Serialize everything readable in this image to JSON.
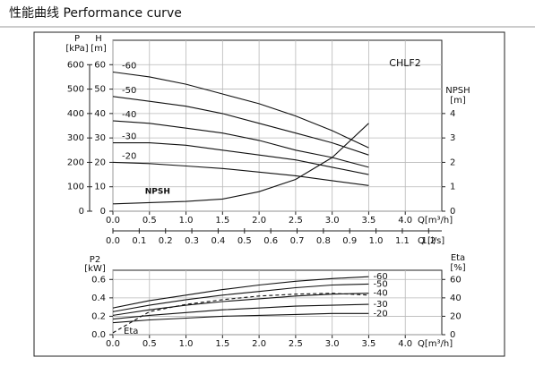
{
  "page_title": "性能曲线  Performance curve",
  "chart_data": [
    {
      "type": "line",
      "annotations": [
        "CHLF2"
      ],
      "x": [
        0,
        0.5,
        1,
        1.5,
        2,
        2.5,
        3,
        3.5
      ],
      "xlim": [
        0,
        4.5
      ],
      "xticks": [
        {
          "value": 0,
          "label": "0.0"
        },
        0.5,
        {
          "value": 1,
          "label": "1.0"
        },
        1.5,
        {
          "value": 2,
          "label": "2.0"
        },
        2.5,
        {
          "value": 3,
          "label": "3.0"
        },
        3.5,
        {
          "value": 4,
          "label": "4.0"
        }
      ],
      "xlabel": "Q[m³/h]",
      "x2lim": [
        0,
        1.25
      ],
      "x2ticks": [
        {
          "value": 0,
          "label": "0.0"
        },
        0.1,
        0.2,
        0.3,
        0.4,
        0.5,
        0.6,
        0.7,
        0.8,
        0.9,
        {
          "value": 1,
          "label": "1.0"
        },
        1.1,
        1.2
      ],
      "x2label": "Q [l/s]",
      "ylim": [
        0,
        70
      ],
      "yticks": [
        0,
        10,
        20,
        30,
        40,
        50,
        60
      ],
      "ylabel": "H",
      "yunit": "[m]",
      "y3lim": [
        0,
        700
      ],
      "y3ticks": [
        0,
        100,
        200,
        300,
        400,
        500,
        600
      ],
      "y3label": "P",
      "y3unit": "[kPa]",
      "y2lim": [
        0,
        7
      ],
      "y2ticks": [
        0,
        1,
        2,
        3,
        4
      ],
      "y2label": "NPSH",
      "y2unit": "[m]",
      "grid": true,
      "series": [
        {
          "name": "-60",
          "color": "#111111",
          "values": [
            57,
            55,
            52,
            48,
            44,
            39,
            33,
            26
          ]
        },
        {
          "name": "-50",
          "color": "#111111",
          "values": [
            47,
            45,
            43,
            40,
            36,
            32,
            28,
            23
          ]
        },
        {
          "name": "-40",
          "color": "#111111",
          "values": [
            37,
            36,
            34,
            32,
            29,
            25,
            22,
            18
          ]
        },
        {
          "name": "-30",
          "color": "#111111",
          "values": [
            28,
            28,
            27,
            25,
            23,
            21,
            18,
            15
          ]
        },
        {
          "name": "-20",
          "color": "#111111",
          "values": [
            20,
            19.5,
            18.5,
            17.5,
            16,
            14.5,
            12.5,
            10.5
          ]
        },
        {
          "name": "NPSH",
          "color": "#111111",
          "axis": "y2",
          "values": [
            0.3,
            0.35,
            0.4,
            0.5,
            0.8,
            1.3,
            2.2,
            3.6
          ]
        }
      ]
    },
    {
      "type": "line",
      "x": [
        0,
        0.5,
        1,
        1.5,
        2,
        2.5,
        3,
        3.5
      ],
      "xlim": [
        0,
        4.5
      ],
      "xticks": [
        {
          "value": 0,
          "label": "0.0"
        },
        0.5,
        {
          "value": 1,
          "label": "1.0"
        },
        1.5,
        {
          "value": 2,
          "label": "2.0"
        },
        2.5,
        {
          "value": 3,
          "label": "3.0"
        },
        3.5,
        {
          "value": 4,
          "label": "4.0"
        }
      ],
      "xlabel": "Q[m³/h]",
      "ylim": [
        0,
        0.7
      ],
      "yticks": [
        {
          "value": 0,
          "label": "0.0"
        },
        0.2,
        0.4,
        0.6
      ],
      "ylabel": "P2",
      "yunit": "[kW]",
      "y2lim": [
        0,
        70
      ],
      "y2ticks": [
        0,
        20,
        40,
        60
      ],
      "y2label": "Eta",
      "y2unit": "[%]",
      "grid": true,
      "series": [
        {
          "name": "-60",
          "color": "#111111",
          "values": [
            0.29,
            0.37,
            0.43,
            0.49,
            0.54,
            0.58,
            0.61,
            0.63
          ]
        },
        {
          "name": "-50",
          "color": "#111111",
          "values": [
            0.25,
            0.32,
            0.38,
            0.43,
            0.47,
            0.51,
            0.54,
            0.55
          ]
        },
        {
          "name": "-40",
          "color": "#111111",
          "values": [
            0.21,
            0.27,
            0.32,
            0.36,
            0.39,
            0.42,
            0.44,
            0.45
          ]
        },
        {
          "name": "-30",
          "color": "#111111",
          "values": [
            0.17,
            0.21,
            0.24,
            0.27,
            0.29,
            0.31,
            0.32,
            0.33
          ]
        },
        {
          "name": "-20",
          "color": "#111111",
          "values": [
            0.13,
            0.16,
            0.18,
            0.2,
            0.21,
            0.22,
            0.23,
            0.23
          ]
        },
        {
          "name": "Eta",
          "color": "#111111",
          "axis": "y2",
          "dash": true,
          "values": [
            2,
            25,
            33,
            38,
            42,
            44,
            45,
            43
          ]
        }
      ]
    }
  ]
}
